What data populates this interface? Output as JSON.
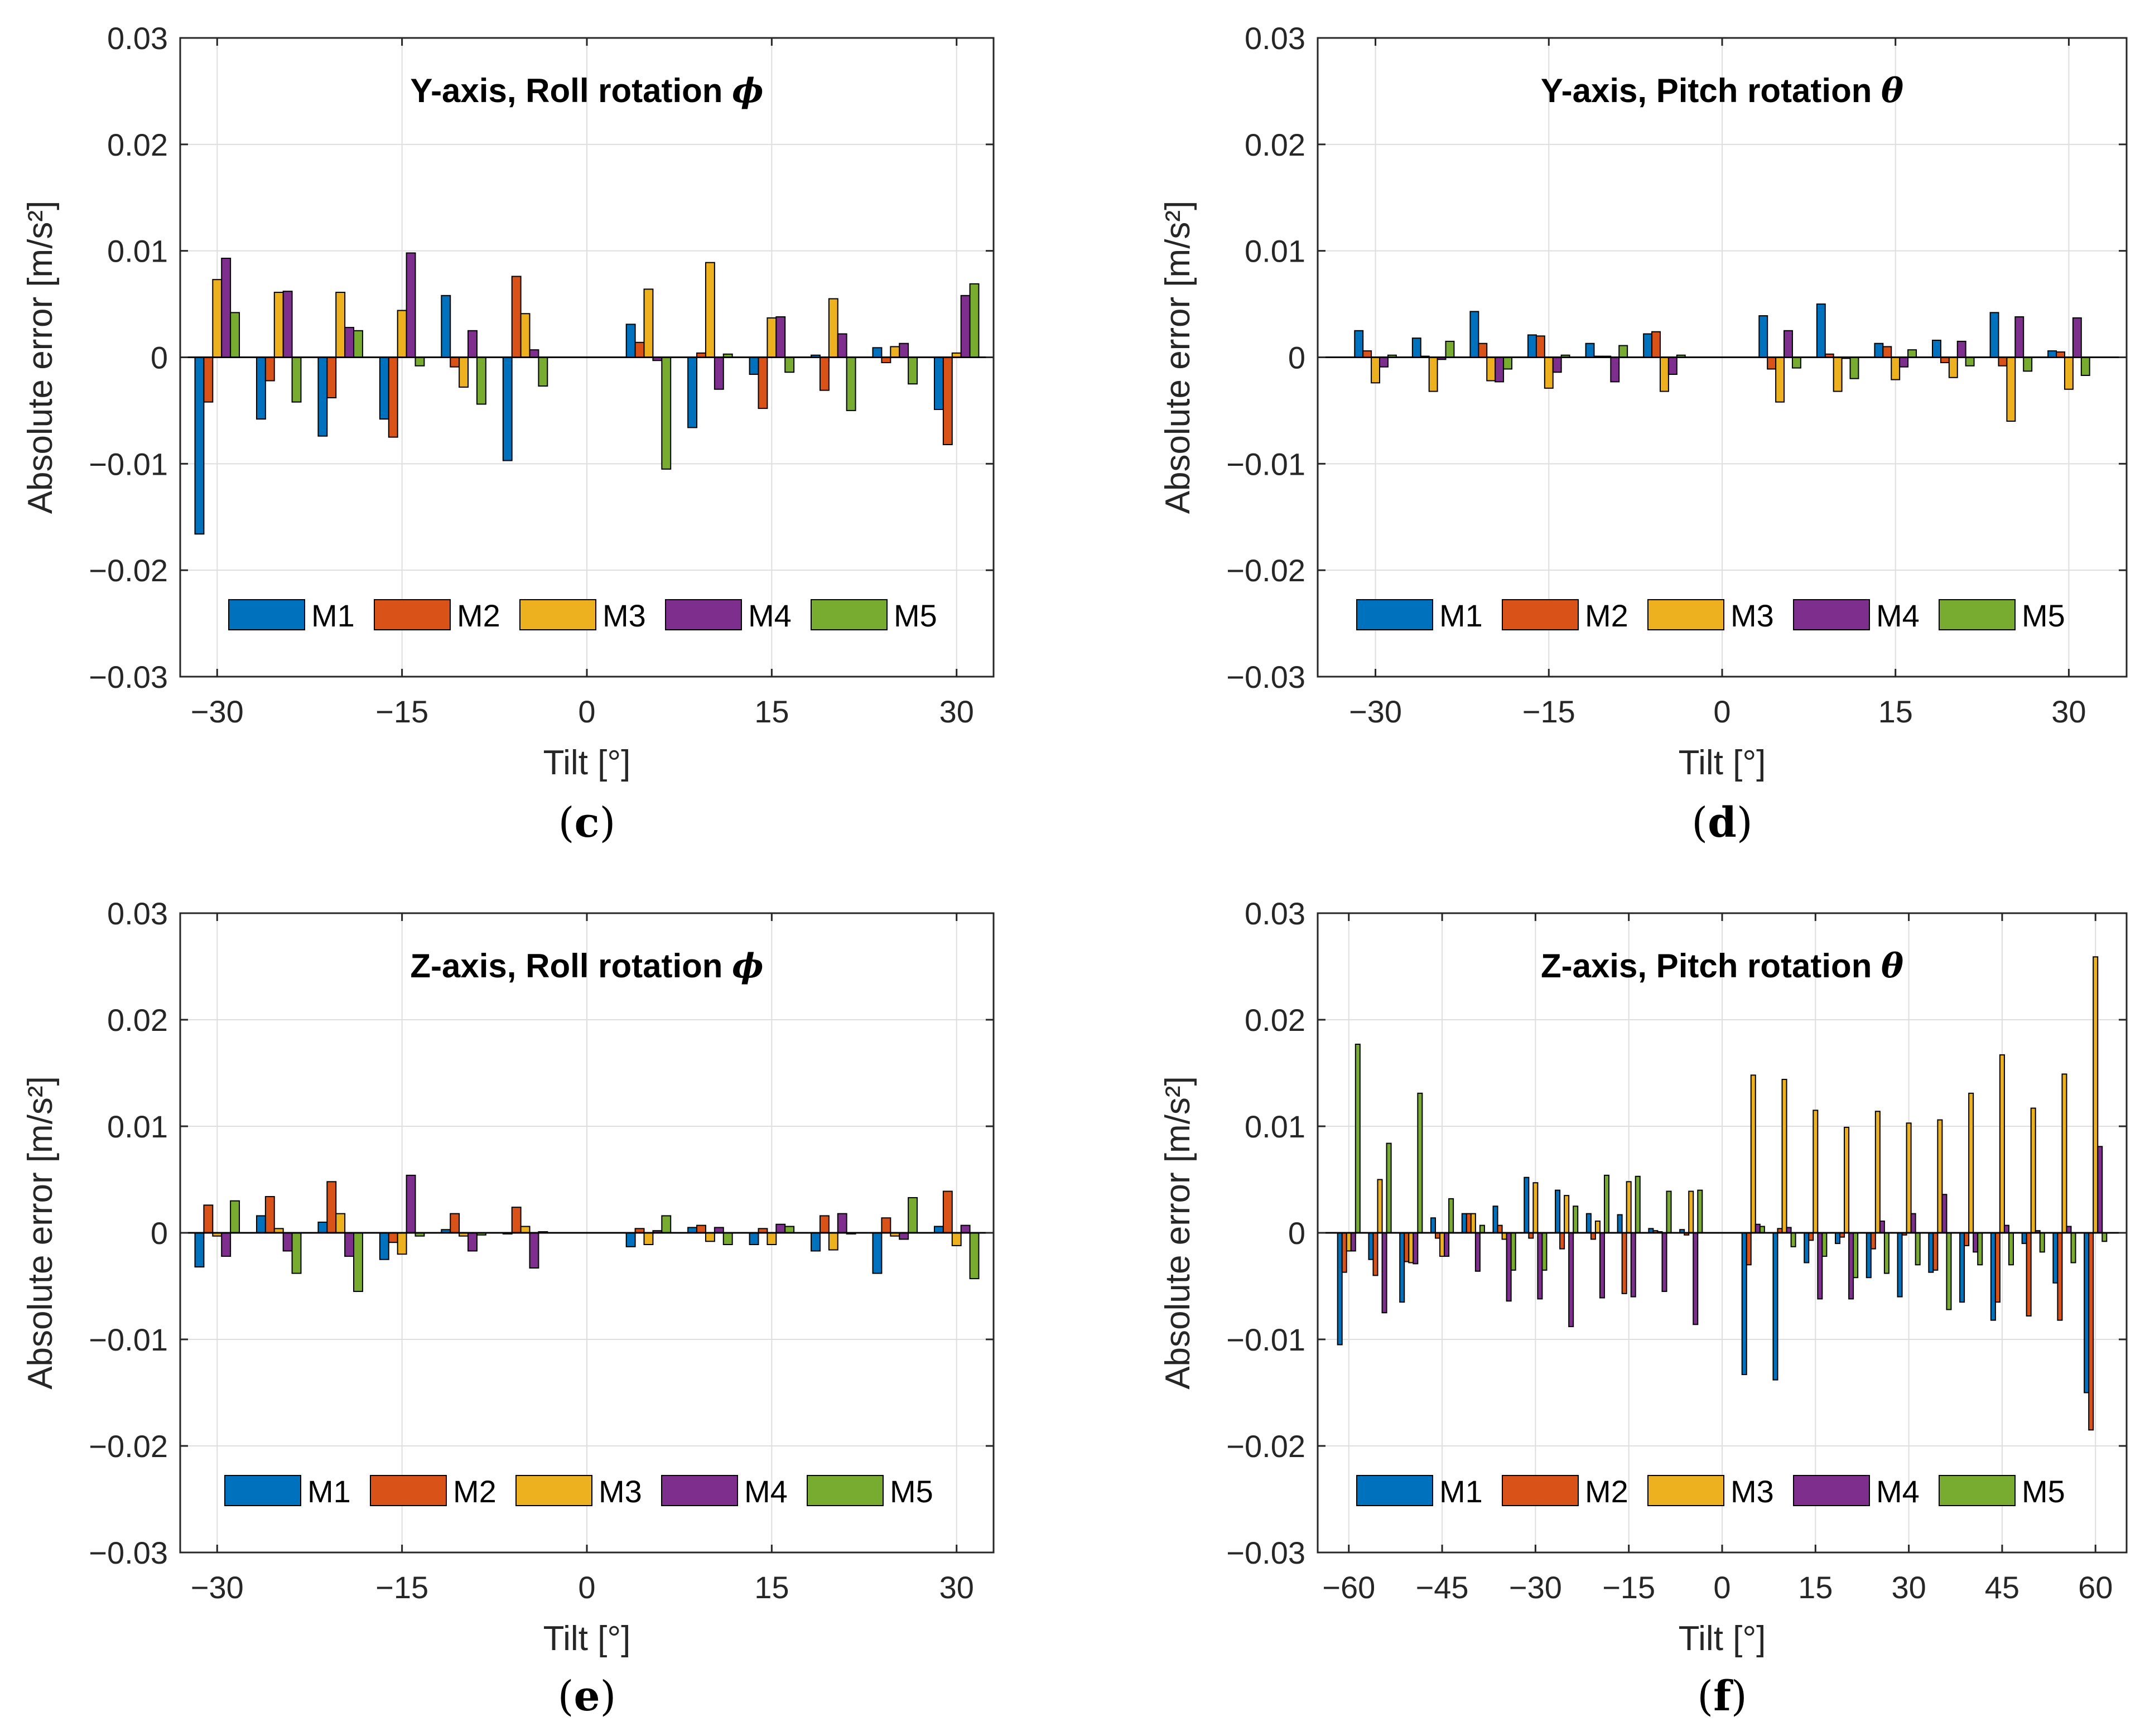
{
  "figure": {
    "series_names": [
      "M1",
      "M2",
      "M3",
      "M4",
      "M5"
    ],
    "series_colors": [
      "#0072bd",
      "#d95319",
      "#edb120",
      "#7e2f8e",
      "#77ac30"
    ]
  },
  "chart_data": [
    {
      "id": "c",
      "type": "bar",
      "caption_open": "(",
      "caption_letter": "c",
      "caption_close": ")",
      "title": "Y-axis, Roll rotation ",
      "title_symbol": "ϕ",
      "xlabel": "Tilt [°]",
      "ylabel": "Absolute error [m/s²]",
      "xlim": [
        -33,
        33
      ],
      "ylim": [
        -0.03,
        0.03
      ],
      "xticks": [
        -30,
        -15,
        0,
        15,
        30
      ],
      "xtick_labels": [
        "−30",
        "−15",
        "0",
        "15",
        "30"
      ],
      "yticks": [
        -0.03,
        -0.02,
        -0.01,
        0,
        0.01,
        0.02,
        0.03
      ],
      "ytick_labels": [
        "−0.03",
        "−0.02",
        "−0.01",
        "0",
        "0.01",
        "0.02",
        "0.03"
      ],
      "x": [
        -30,
        -25,
        -20,
        -15,
        -10,
        -5,
        0,
        5,
        10,
        15,
        20,
        25,
        30
      ],
      "group_width": 3.6,
      "series": [
        {
          "name": "M1",
          "values": [
            -0.0166,
            -0.0058,
            -0.0074,
            -0.0058,
            0.0058,
            -0.0097,
            0,
            0.0031,
            -0.0066,
            -0.0016,
            0.0002,
            0.0009,
            -0.0049
          ]
        },
        {
          "name": "M2",
          "values": [
            -0.0042,
            -0.0022,
            -0.0038,
            -0.0075,
            -0.0009,
            0.0076,
            0,
            0.0014,
            0.0004,
            -0.0048,
            -0.0031,
            -0.0005,
            -0.0082
          ]
        },
        {
          "name": "M3",
          "values": [
            0.0073,
            0.0061,
            0.0061,
            0.0044,
            -0.0028,
            0.0041,
            0,
            0.0064,
            0.0089,
            0.0037,
            0.0055,
            0.001,
            0.0004
          ]
        },
        {
          "name": "M4",
          "values": [
            0.0093,
            0.0062,
            0.0028,
            0.0098,
            0.0025,
            0.0007,
            0,
            -0.0003,
            -0.003,
            0.0038,
            0.0022,
            0.0013,
            0.0058
          ]
        },
        {
          "name": "M5",
          "values": [
            0.0042,
            -0.0042,
            0.0025,
            -0.0008,
            -0.0044,
            -0.0027,
            0,
            -0.0105,
            0.0003,
            -0.0014,
            -0.005,
            -0.0025,
            0.0069
          ]
        }
      ]
    },
    {
      "id": "d",
      "type": "bar",
      "caption_open": "(",
      "caption_letter": "d",
      "caption_close": ")",
      "title": "Y-axis, Pitch rotation ",
      "title_symbol": "θ",
      "xlabel": "Tilt [°]",
      "ylabel": "Absolute error [m/s²]",
      "xlim": [
        -35,
        35
      ],
      "ylim": [
        -0.03,
        0.03
      ],
      "xticks": [
        -30,
        -15,
        0,
        15,
        30
      ],
      "xtick_labels": [
        "−30",
        "−15",
        "0",
        "15",
        "30"
      ],
      "yticks": [
        -0.03,
        -0.02,
        -0.01,
        0,
        0.01,
        0.02,
        0.03
      ],
      "ytick_labels": [
        "−0.03",
        "−0.02",
        "−0.01",
        "0",
        "0.01",
        "0.02",
        "0.03"
      ],
      "x": [
        -30,
        -25,
        -20,
        -15,
        -10,
        -5,
        0,
        5,
        10,
        15,
        20,
        25,
        30
      ],
      "group_width": 3.6,
      "series": [
        {
          "name": "M1",
          "values": [
            0.0025,
            0.0018,
            0.0043,
            0.0021,
            0.0013,
            0.0022,
            0,
            0.0039,
            0.005,
            0.0013,
            0.0016,
            0.0042,
            0.0006
          ]
        },
        {
          "name": "M2",
          "values": [
            0.0006,
            0.0001,
            0.0013,
            0.002,
            0.0001,
            0.0024,
            0,
            -0.0011,
            0.0003,
            0.001,
            -0.0005,
            -0.0008,
            0.0005
          ]
        },
        {
          "name": "M3",
          "values": [
            -0.0024,
            -0.0032,
            -0.0022,
            -0.0029,
            0.0001,
            -0.0032,
            0,
            -0.0042,
            -0.0032,
            -0.0021,
            -0.0019,
            -0.006,
            -0.003
          ]
        },
        {
          "name": "M4",
          "values": [
            -0.0009,
            -0.0002,
            -0.0023,
            -0.0014,
            -0.0023,
            -0.0016,
            0,
            0.0025,
            -0.0001,
            -0.0009,
            0.0015,
            0.0038,
            0.0037
          ]
        },
        {
          "name": "M5",
          "values": [
            0.0002,
            0.0015,
            -0.0011,
            0.0002,
            0.0011,
            0.0002,
            0,
            -0.001,
            -0.002,
            0.0007,
            -0.0008,
            -0.0013,
            -0.0017
          ]
        }
      ]
    },
    {
      "id": "e",
      "type": "bar",
      "caption_open": "(",
      "caption_letter": "e",
      "caption_close": ")",
      "title": "Z-axis, Roll rotation ",
      "title_symbol": "ϕ",
      "xlabel": "Tilt [°]",
      "ylabel": "Absolute error [m/s²]",
      "xlim": [
        -33,
        33
      ],
      "ylim": [
        -0.03,
        0.03
      ],
      "xticks": [
        -30,
        -15,
        0,
        15,
        30
      ],
      "xtick_labels": [
        "−30",
        "−15",
        "0",
        "15",
        "30"
      ],
      "yticks": [
        -0.03,
        -0.02,
        -0.01,
        0,
        0.01,
        0.02,
        0.03
      ],
      "ytick_labels": [
        "−0.03",
        "−0.02",
        "−0.01",
        "0",
        "0.01",
        "0.02",
        "0.03"
      ],
      "x": [
        -30,
        -25,
        -20,
        -15,
        -10,
        -5,
        0,
        5,
        10,
        15,
        20,
        25,
        30
      ],
      "group_width": 3.6,
      "series": [
        {
          "name": "M1",
          "values": [
            -0.0032,
            0.0016,
            0.001,
            -0.0025,
            0.0003,
            -0.0001,
            0,
            -0.0013,
            0.0005,
            -0.0011,
            -0.0017,
            -0.0038,
            0.0006
          ]
        },
        {
          "name": "M2",
          "values": [
            0.0026,
            0.0034,
            0.0048,
            -0.0009,
            0.0018,
            0.0024,
            0,
            0.0004,
            0.0007,
            0.0004,
            0.0016,
            0.0014,
            0.0039
          ]
        },
        {
          "name": "M3",
          "values": [
            -0.0003,
            0.0004,
            0.0018,
            -0.002,
            -0.0003,
            0.0006,
            0,
            -0.0011,
            -0.0008,
            -0.0011,
            -0.0016,
            -0.0003,
            -0.0012
          ]
        },
        {
          "name": "M4",
          "values": [
            -0.0022,
            -0.0017,
            -0.0022,
            0.0054,
            -0.0017,
            -0.0033,
            0,
            0.0002,
            0.0005,
            0.0008,
            0.0018,
            -0.0006,
            0.0007
          ]
        },
        {
          "name": "M5",
          "values": [
            0.003,
            -0.0038,
            -0.0055,
            -0.0003,
            -0.0002,
            0.0001,
            0,
            0.0016,
            -0.0011,
            0.0006,
            -0.0001,
            0.0033,
            -0.0043
          ]
        }
      ]
    },
    {
      "id": "f",
      "type": "bar",
      "caption_open": "(",
      "caption_letter": "f",
      "caption_close": ")",
      "title": "Z-axis, Pitch rotation ",
      "title_symbol": "θ",
      "xlabel": "Tilt [°]",
      "ylabel": "Absolute error [m/s²]",
      "xlim": [
        -65,
        65
      ],
      "ylim": [
        -0.03,
        0.03
      ],
      "xticks": [
        -60,
        -45,
        -30,
        -15,
        0,
        15,
        30,
        45,
        60
      ],
      "xtick_labels": [
        "−60",
        "−45",
        "−30",
        "−15",
        "0",
        "15",
        "30",
        "45",
        "60"
      ],
      "yticks": [
        -0.03,
        -0.02,
        -0.01,
        0,
        0.01,
        0.02,
        0.03
      ],
      "ytick_labels": [
        "−0.03",
        "−0.02",
        "−0.01",
        "0",
        "0.01",
        "0.02",
        "0.03"
      ],
      "x": [
        -60,
        -55,
        -50,
        -45,
        -40,
        -35,
        -30,
        -25,
        -20,
        -15,
        -10,
        -5,
        0,
        5,
        10,
        15,
        20,
        25,
        30,
        35,
        40,
        45,
        50,
        55,
        60
      ],
      "group_width": 3.6,
      "series": [
        {
          "name": "M1",
          "values": [
            -0.0105,
            -0.0025,
            -0.0065,
            0.0014,
            0.0018,
            0.0025,
            0.0052,
            0.004,
            0.0018,
            0.0017,
            0.0004,
            0.0003,
            0,
            -0.0133,
            -0.0138,
            -0.0028,
            -0.001,
            -0.0042,
            -0.006,
            -0.0037,
            -0.0065,
            -0.0082,
            -0.001,
            -0.0047,
            -0.015
          ]
        },
        {
          "name": "M2",
          "values": [
            -0.0037,
            -0.004,
            -0.0027,
            -0.0005,
            0.0018,
            0.0007,
            -0.0005,
            -0.0015,
            -0.0006,
            -0.0057,
            0.0002,
            -0.0002,
            0,
            -0.003,
            0.0004,
            -0.0007,
            -0.0004,
            -0.0015,
            -0.0002,
            -0.0035,
            -0.0012,
            -0.0065,
            -0.0078,
            -0.0082,
            -0.0185
          ]
        },
        {
          "name": "M3",
          "values": [
            -0.0017,
            0.005,
            -0.0028,
            -0.0022,
            0.0018,
            -0.0006,
            0.0047,
            0.0035,
            0.0011,
            0.0048,
            0.0001,
            0.0039,
            0,
            0.0148,
            0.0144,
            0.0115,
            0.0099,
            0.0114,
            0.0103,
            0.0106,
            0.0131,
            0.0167,
            0.0117,
            0.0149,
            0.0259
          ]
        },
        {
          "name": "M4",
          "values": [
            -0.0017,
            -0.0075,
            -0.0029,
            -0.0022,
            -0.0036,
            -0.0064,
            -0.0062,
            -0.0088,
            -0.0061,
            -0.006,
            -0.0055,
            -0.0086,
            0,
            0.0008,
            0.0005,
            -0.0062,
            -0.0062,
            0.0011,
            0.0018,
            0.0036,
            -0.0018,
            0.0007,
            0.0002,
            0.0006,
            0.0081
          ]
        },
        {
          "name": "M5",
          "values": [
            0.0177,
            0.0084,
            0.0131,
            0.0032,
            0.0007,
            -0.0035,
            -0.0035,
            0.0025,
            0.0054,
            0.0053,
            0.0039,
            0.004,
            0,
            0.0006,
            -0.0013,
            -0.0022,
            -0.0042,
            -0.0038,
            -0.003,
            -0.0072,
            -0.003,
            -0.003,
            -0.0018,
            -0.0028,
            -0.0008
          ]
        }
      ]
    }
  ]
}
